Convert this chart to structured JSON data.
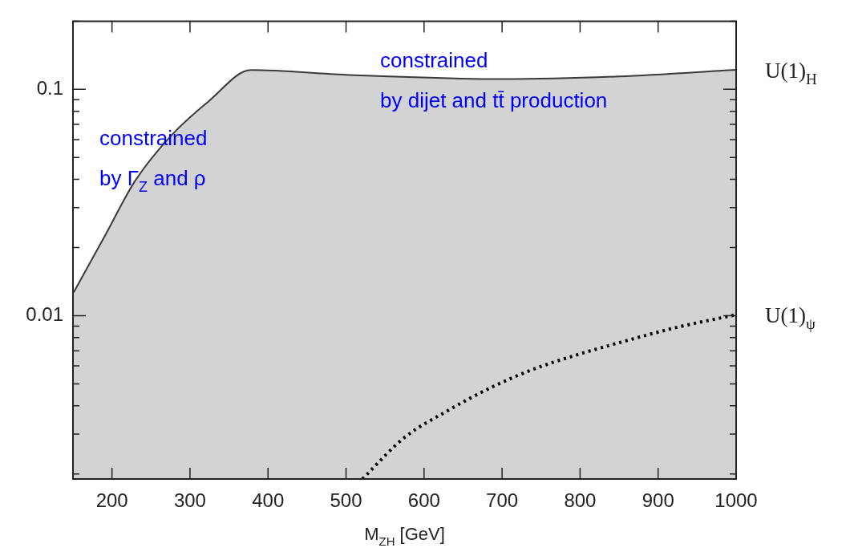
{
  "chart_data": {
    "type": "area",
    "xlabel": "M$_{ZH}$ [GeV]",
    "series": [
      {
        "name": "U(1)$_{H}$",
        "color": "#d3d3d3",
        "x": [
          151,
          192,
          229,
          275,
          324,
          378,
          500,
          700,
          850,
          1000
        ],
        "values": [
          0.0127,
          0.0229,
          0.0391,
          0.062,
          0.0886,
          0.1216,
          0.116,
          0.111,
          0.114,
          0.122
        ]
      },
      {
        "type": "line",
        "name": "U(1)$_{ψ}$",
        "color": "#000000",
        "line_style": "dotted",
        "x": [
          521,
          575,
          630,
          685,
          740,
          795,
          850,
          925,
          1000
        ],
        "values": [
          0.0019,
          0.0029,
          0.0038,
          0.0048,
          0.0058,
          0.0067,
          0.0076,
          0.0089,
          0.0101
        ]
      }
    ],
    "xlim": [
      150,
      1000
    ],
    "xticks": [
      200,
      300,
      400,
      500,
      600,
      700,
      800,
      900,
      1000
    ],
    "ylim": [
      0.0019,
      0.2
    ],
    "log": "y",
    "grid": false,
    "yticks": [
      {
        "value": 0.002,
        "label": null
      },
      {
        "value": 0.003,
        "label": null
      },
      {
        "value": 0.004,
        "label": null
      },
      {
        "value": 0.005,
        "label": null
      },
      {
        "value": 0.006,
        "label": null
      },
      {
        "value": 0.007,
        "label": null
      },
      {
        "value": 0.008,
        "label": null
      },
      {
        "value": 0.009,
        "label": null
      },
      0.01,
      {
        "value": 0.02,
        "label": null
      },
      {
        "value": 0.03,
        "label": null
      },
      {
        "value": 0.04,
        "label": null
      },
      {
        "value": 0.05,
        "label": null
      },
      {
        "value": 0.06,
        "label": null
      },
      {
        "value": 0.07,
        "label": null
      },
      {
        "value": 0.08,
        "label": null
      },
      {
        "value": 0.09,
        "label": null
      },
      0.1,
      {
        "value": 0.2,
        "label": null
      }
    ],
    "annotations": [
      "constrained\nby Γ$_{Z}$ and ρ",
      "constrained\nby dijet and tt̄ production"
    ]
  }
}
